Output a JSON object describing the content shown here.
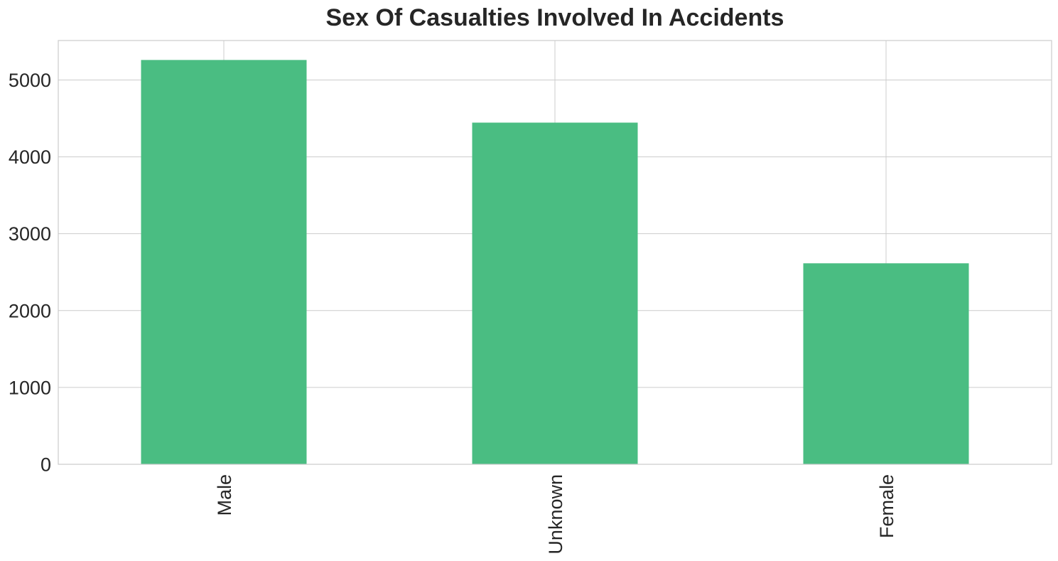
{
  "chart_data": {
    "type": "bar",
    "title": "Sex Of Casualties Involved In Accidents",
    "xlabel": "",
    "ylabel": "",
    "categories": [
      "Male",
      "Unknown",
      "Female"
    ],
    "values": [
      5260,
      4445,
      2615
    ],
    "ylim": [
      0,
      5513
    ],
    "yticks": [
      0,
      1000,
      2000,
      3000,
      4000,
      5000
    ],
    "ytick_labels": [
      "0",
      "1000",
      "2000",
      "3000",
      "4000",
      "5000"
    ],
    "grid": true,
    "legend": "none",
    "bar_color": "#4abd82",
    "grid_color": "#cccccc",
    "text_color": "#262626"
  }
}
